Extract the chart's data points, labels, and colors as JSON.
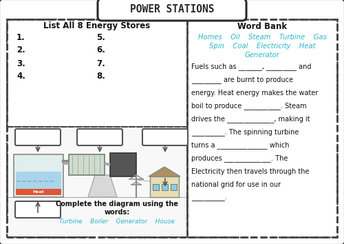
{
  "title": "POWER STATIONS",
  "bg_color": "#ffffff",
  "border_color": "#2a2a2a",
  "dashed_color": "#444444",
  "cyan_color": "#29b6c8",
  "left_title": "List All 8 Energy Stores",
  "left_items_col1": [
    "1.",
    "2.",
    "3.",
    "4."
  ],
  "left_items_col2": [
    "5.",
    "6.",
    "7.",
    "8."
  ],
  "right_title": "Word Bank",
  "word_bank_row1": "Homes    Oil    Steam    Turbine    Gas",
  "word_bank_row2": "Spin    Coal    Electricity    Heat",
  "word_bank_row3": "Generator",
  "para_lines": [
    "Fuels such as _______, _________ and",
    "_________ are burnt to produce",
    "energy. Heat energy makes the water",
    "boil to produce ___________. Steam",
    "drives the ______________, making it",
    "__________. The spinning turbine",
    "turns a _______________ which",
    "produces ______________. The",
    "Electricity then travels through the",
    "national grid for use in our",
    "__________."
  ],
  "diagram_caption": "Complete the diagram using the\nwords:",
  "diagram_words": "Turbine    Boiler    Generator    House"
}
